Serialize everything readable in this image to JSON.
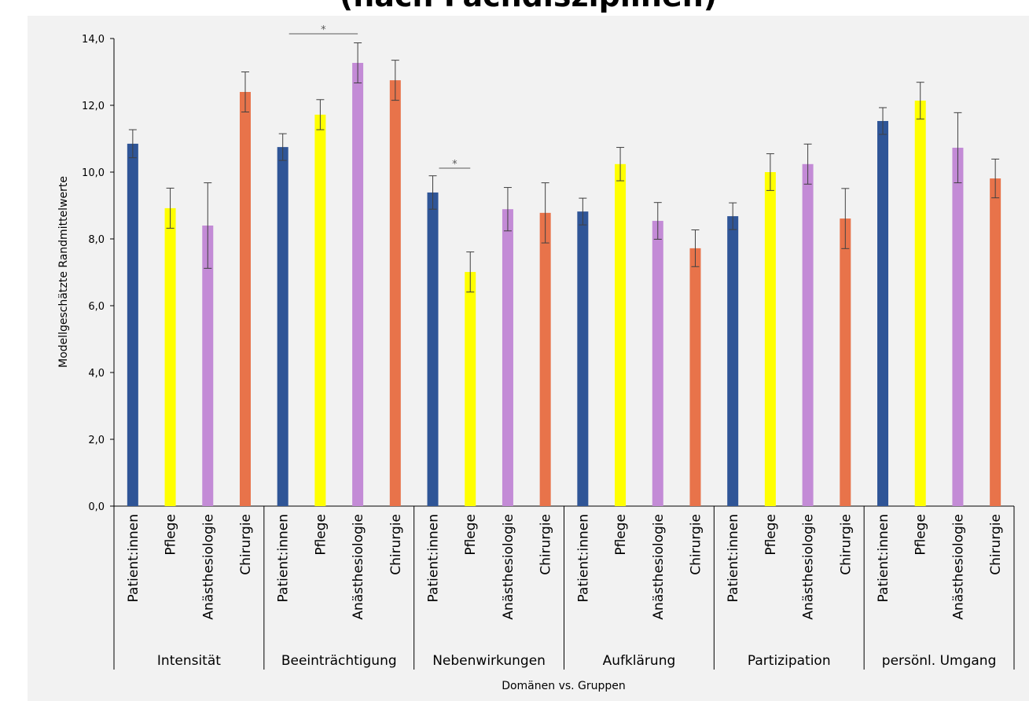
{
  "chart_data": {
    "type": "bar",
    "title": "(nach Fachdisziplinen)",
    "y_label": "Modellgeschätzte Randmittelwerte",
    "x_label": "Domänen vs. Gruppen",
    "categories": [
      "Intensität",
      "Beeinträchtigung",
      "Nebenwirkungen",
      "Aufklärung",
      "Partizipation",
      "persönl. Umgang"
    ],
    "series": [
      {
        "name": "Patient:innen",
        "color": "#2f5597",
        "values": [
          10.85,
          10.75,
          9.39,
          8.82,
          8.68,
          11.53
        ],
        "errors": [
          0.42,
          0.4,
          0.5,
          0.4,
          0.4,
          0.4
        ]
      },
      {
        "name": "Pflege",
        "color": "#ffff00",
        "values": [
          8.92,
          11.72,
          7.01,
          10.24,
          10.0,
          12.14
        ],
        "errors": [
          0.6,
          0.45,
          0.6,
          0.5,
          0.55,
          0.55
        ]
      },
      {
        "name": "Anästhesiologie",
        "color": "#c38bd6",
        "values": [
          8.4,
          13.27,
          8.89,
          8.54,
          10.24,
          10.73
        ],
        "errors": [
          1.28,
          0.6,
          0.65,
          0.55,
          0.6,
          1.05
        ]
      },
      {
        "name": "Chirurgie",
        "color": "#e8734a",
        "values": [
          12.4,
          12.75,
          8.78,
          7.72,
          8.61,
          9.81
        ],
        "errors": [
          0.6,
          0.6,
          0.9,
          0.55,
          0.9,
          0.58
        ]
      }
    ],
    "ylim": [
      0,
      14
    ],
    "yticks": [
      {
        "value": 0,
        "label": "0,0"
      },
      {
        "value": 2,
        "label": "2,0"
      },
      {
        "value": 4,
        "label": "4,0"
      },
      {
        "value": 6,
        "label": "6,0"
      },
      {
        "value": 8,
        "label": "8,0"
      },
      {
        "value": 10,
        "label": "10,0"
      },
      {
        "value": 12,
        "label": "12,0"
      },
      {
        "value": 14,
        "label": "14,0"
      }
    ],
    "annotations": [
      "*",
      "*"
    ]
  }
}
